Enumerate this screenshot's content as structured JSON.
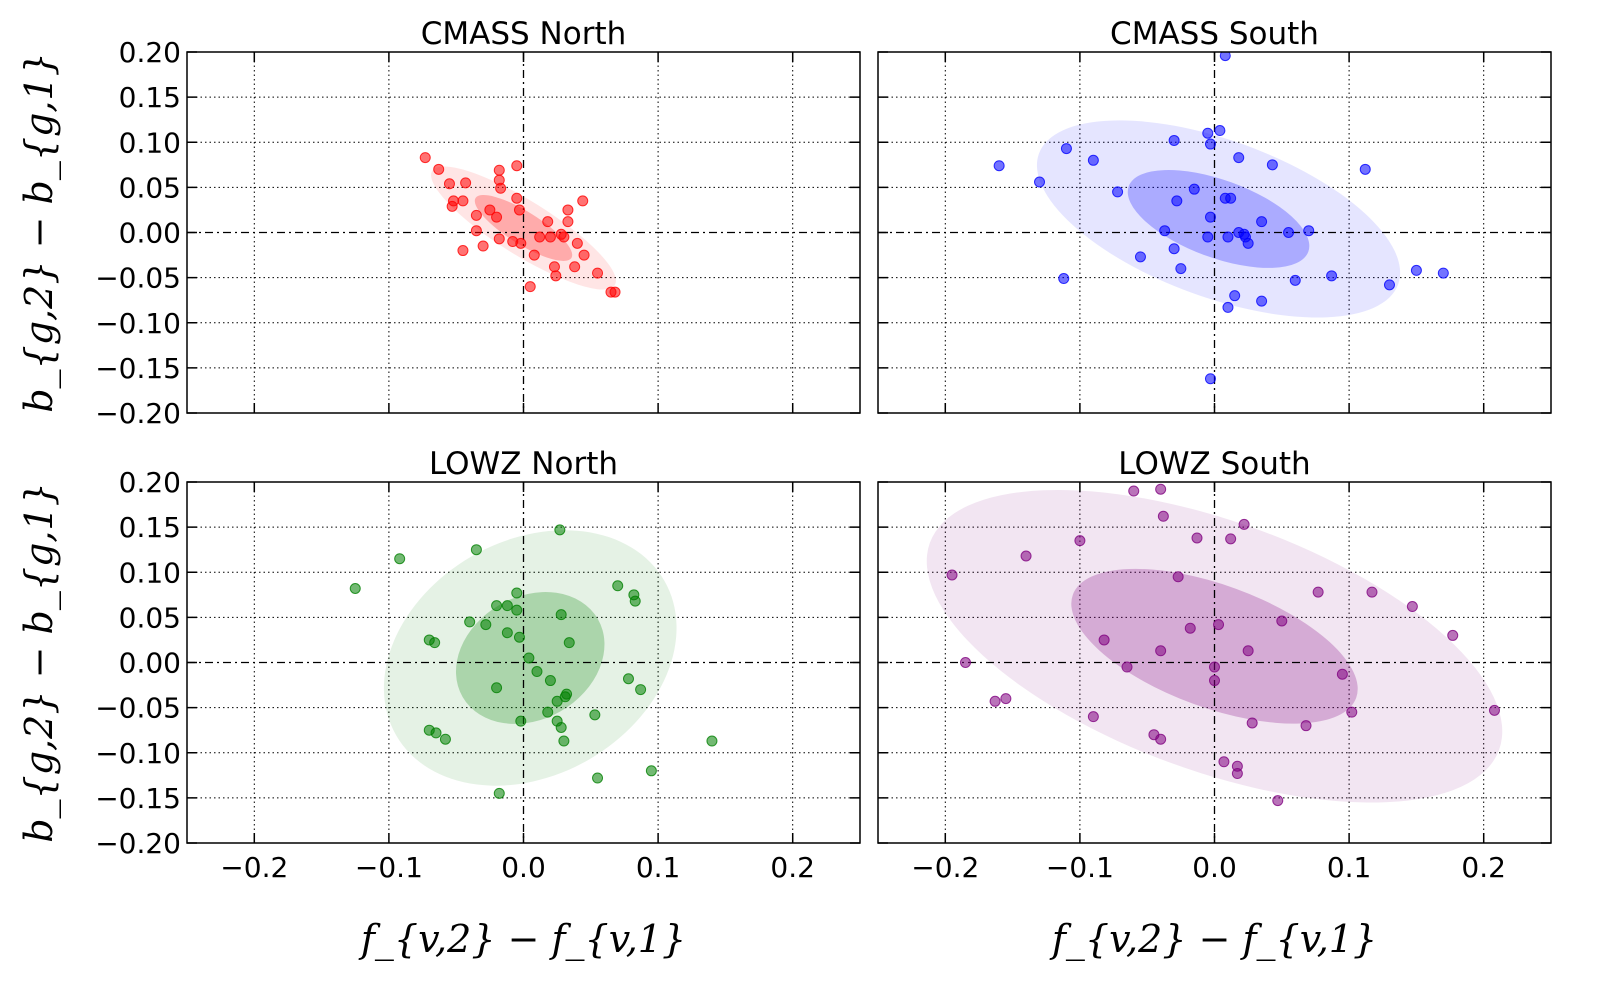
{
  "figure": {
    "xlabel": "f_{v,2} − f_{v,1}",
    "ylabel": "b_{g,2} − b_{g,1}",
    "x_ticks": [
      "−0.2",
      "−0.1",
      "0.0",
      "0.1",
      "0.2"
    ],
    "y_ticks": [
      "0.20",
      "0.15",
      "0.10",
      "0.05",
      "0.00",
      "−0.05",
      "−0.10",
      "−0.15",
      "−0.20"
    ]
  },
  "chart_data": [
    {
      "type": "scatter",
      "title": "CMASS North",
      "xlim": [
        -0.25,
        0.25
      ],
      "ylim": [
        -0.2,
        0.2
      ],
      "grid": true,
      "color": "#ff0000",
      "ellipses": [
        {
          "cx": 0.0,
          "cy": 0.005,
          "rx": 0.08,
          "ry": 0.03,
          "angle_deg": 32,
          "alpha": 0.1
        },
        {
          "cx": 0.0,
          "cy": 0.005,
          "rx": 0.042,
          "ry": 0.018,
          "angle_deg": 32,
          "alpha": 0.25
        }
      ],
      "points": [
        [
          -0.073,
          0.083
        ],
        [
          -0.063,
          0.07
        ],
        [
          -0.055,
          0.054
        ],
        [
          -0.043,
          0.055
        ],
        [
          -0.052,
          0.035
        ],
        [
          -0.053,
          0.029
        ],
        [
          -0.045,
          0.035
        ],
        [
          -0.018,
          0.069
        ],
        [
          -0.018,
          0.058
        ],
        [
          -0.017,
          0.049
        ],
        [
          -0.005,
          0.074
        ],
        [
          -0.025,
          0.025
        ],
        [
          -0.035,
          0.019
        ],
        [
          -0.035,
          0.002
        ],
        [
          -0.02,
          0.017
        ],
        [
          -0.005,
          0.038
        ],
        [
          -0.003,
          0.025
        ],
        [
          -0.045,
          -0.02
        ],
        [
          -0.03,
          -0.015
        ],
        [
          -0.018,
          -0.007
        ],
        [
          -0.008,
          -0.01
        ],
        [
          -0.002,
          -0.012
        ],
        [
          0.008,
          -0.025
        ],
        [
          0.005,
          -0.06
        ],
        [
          0.012,
          -0.005
        ],
        [
          0.018,
          0.012
        ],
        [
          0.02,
          -0.005
        ],
        [
          0.023,
          -0.038
        ],
        [
          0.024,
          -0.048
        ],
        [
          0.028,
          -0.002
        ],
        [
          0.033,
          0.012
        ],
        [
          0.033,
          0.025
        ],
        [
          0.04,
          -0.012
        ],
        [
          0.044,
          0.035
        ],
        [
          0.045,
          -0.025
        ],
        [
          0.038,
          -0.038
        ],
        [
          0.03,
          -0.005
        ],
        [
          0.055,
          -0.045
        ],
        [
          0.065,
          -0.066
        ],
        [
          0.068,
          -0.066
        ]
      ]
    },
    {
      "type": "scatter",
      "title": "CMASS South",
      "xlim": [
        -0.25,
        0.25
      ],
      "ylim": [
        -0.2,
        0.2
      ],
      "grid": true,
      "color": "#0000ff",
      "ellipses": [
        {
          "cx": 0.003,
          "cy": 0.015,
          "rx": 0.142,
          "ry": 0.087,
          "angle_deg": 20,
          "alpha": 0.1
        },
        {
          "cx": 0.003,
          "cy": 0.015,
          "rx": 0.071,
          "ry": 0.043,
          "angle_deg": 20,
          "alpha": 0.25
        }
      ],
      "points": [
        [
          0.008,
          0.196
        ],
        [
          -0.16,
          0.074
        ],
        [
          -0.13,
          0.056
        ],
        [
          -0.11,
          0.093
        ],
        [
          -0.09,
          0.08
        ],
        [
          -0.072,
          0.045
        ],
        [
          -0.112,
          -0.051
        ],
        [
          -0.055,
          -0.027
        ],
        [
          -0.03,
          0.102
        ],
        [
          -0.015,
          0.048
        ],
        [
          -0.028,
          0.035
        ],
        [
          -0.037,
          0.002
        ],
        [
          -0.03,
          -0.018
        ],
        [
          -0.025,
          -0.04
        ],
        [
          -0.005,
          0.11
        ],
        [
          0.004,
          0.113
        ],
        [
          -0.003,
          0.098
        ],
        [
          0.018,
          0.083
        ],
        [
          0.043,
          0.075
        ],
        [
          0.008,
          0.038
        ],
        [
          0.012,
          0.038
        ],
        [
          -0.003,
          0.017
        ],
        [
          0.035,
          0.012
        ],
        [
          0.018,
          0.0
        ],
        [
          0.023,
          -0.005
        ],
        [
          0.025,
          -0.012
        ],
        [
          -0.005,
          -0.005
        ],
        [
          0.01,
          -0.005
        ],
        [
          0.022,
          -0.002
        ],
        [
          0.07,
          0.002
        ],
        [
          0.055,
          0.0
        ],
        [
          0.06,
          -0.053
        ],
        [
          0.087,
          -0.048
        ],
        [
          0.015,
          -0.07
        ],
        [
          0.01,
          -0.083
        ],
        [
          0.035,
          -0.076
        ],
        [
          0.112,
          0.07
        ],
        [
          0.13,
          -0.058
        ],
        [
          0.15,
          -0.042
        ],
        [
          0.17,
          -0.045
        ],
        [
          -0.003,
          -0.162
        ]
      ]
    },
    {
      "type": "scatter",
      "title": "LOWZ North",
      "xlim": [
        -0.25,
        0.25
      ],
      "ylim": [
        -0.2,
        0.2
      ],
      "grid": true,
      "color": "#008000",
      "ellipses": [
        {
          "cx": 0.005,
          "cy": 0.005,
          "rx": 0.115,
          "ry": 0.13,
          "angle_deg": -30,
          "alpha": 0.1
        },
        {
          "cx": 0.005,
          "cy": 0.005,
          "rx": 0.058,
          "ry": 0.068,
          "angle_deg": -30,
          "alpha": 0.25
        }
      ],
      "points": [
        [
          -0.125,
          0.082
        ],
        [
          -0.092,
          0.115
        ],
        [
          -0.035,
          0.125
        ],
        [
          0.027,
          0.147
        ],
        [
          -0.07,
          0.025
        ],
        [
          -0.066,
          0.022
        ],
        [
          -0.04,
          0.045
        ],
        [
          -0.028,
          0.042
        ],
        [
          -0.02,
          0.063
        ],
        [
          -0.012,
          0.063
        ],
        [
          -0.005,
          0.077
        ],
        [
          -0.005,
          0.058
        ],
        [
          -0.012,
          0.033
        ],
        [
          -0.003,
          0.028
        ],
        [
          0.028,
          0.053
        ],
        [
          0.034,
          0.022
        ],
        [
          0.004,
          0.005
        ],
        [
          0.01,
          -0.01
        ],
        [
          -0.02,
          -0.028
        ],
        [
          0.02,
          -0.02
        ],
        [
          0.032,
          -0.035
        ],
        [
          0.031,
          -0.038
        ],
        [
          0.018,
          -0.055
        ],
        [
          0.025,
          -0.043
        ],
        [
          0.025,
          -0.065
        ],
        [
          0.028,
          -0.072
        ],
        [
          0.03,
          -0.087
        ],
        [
          0.053,
          -0.058
        ],
        [
          0.055,
          -0.128
        ],
        [
          0.078,
          -0.018
        ],
        [
          0.087,
          -0.03
        ],
        [
          0.07,
          0.085
        ],
        [
          0.082,
          0.075
        ],
        [
          0.083,
          0.068
        ],
        [
          0.095,
          -0.12
        ],
        [
          0.14,
          -0.087
        ],
        [
          -0.07,
          -0.075
        ],
        [
          -0.065,
          -0.078
        ],
        [
          -0.058,
          -0.085
        ],
        [
          -0.002,
          -0.065
        ],
        [
          -0.018,
          -0.145
        ]
      ]
    },
    {
      "type": "scatter",
      "title": "LOWZ South",
      "xlim": [
        -0.25,
        0.25
      ],
      "ylim": [
        -0.2,
        0.2
      ],
      "grid": true,
      "color": "#800080",
      "ellipses": [
        {
          "cx": 0.0,
          "cy": 0.018,
          "rx": 0.225,
          "ry": 0.138,
          "angle_deg": 20,
          "alpha": 0.1
        },
        {
          "cx": 0.0,
          "cy": 0.018,
          "rx": 0.112,
          "ry": 0.068,
          "angle_deg": 20,
          "alpha": 0.25
        }
      ],
      "points": [
        [
          -0.06,
          0.19
        ],
        [
          -0.04,
          0.192
        ],
        [
          -0.038,
          0.162
        ],
        [
          -0.195,
          0.097
        ],
        [
          -0.185,
          0.0
        ],
        [
          -0.163,
          -0.043
        ],
        [
          -0.155,
          -0.04
        ],
        [
          -0.14,
          0.118
        ],
        [
          -0.1,
          0.135
        ],
        [
          -0.082,
          0.025
        ],
        [
          -0.065,
          -0.005
        ],
        [
          -0.09,
          -0.06
        ],
        [
          -0.045,
          -0.08
        ],
        [
          -0.04,
          -0.085
        ],
        [
          -0.04,
          0.013
        ],
        [
          -0.027,
          0.095
        ],
        [
          -0.018,
          0.038
        ],
        [
          -0.013,
          0.138
        ],
        [
          0.012,
          0.137
        ],
        [
          0.022,
          0.153
        ],
        [
          0.003,
          0.042
        ],
        [
          0.025,
          0.013
        ],
        [
          0.0,
          -0.005
        ],
        [
          0.0,
          -0.02
        ],
        [
          0.007,
          -0.11
        ],
        [
          0.017,
          -0.115
        ],
        [
          0.017,
          -0.123
        ],
        [
          0.028,
          -0.067
        ],
        [
          0.047,
          -0.153
        ],
        [
          0.05,
          0.046
        ],
        [
          0.068,
          -0.07
        ],
        [
          0.077,
          0.078
        ],
        [
          0.095,
          -0.013
        ],
        [
          0.102,
          -0.055
        ],
        [
          0.117,
          0.078
        ],
        [
          0.147,
          0.062
        ],
        [
          0.177,
          0.03
        ],
        [
          0.208,
          -0.053
        ]
      ]
    }
  ]
}
